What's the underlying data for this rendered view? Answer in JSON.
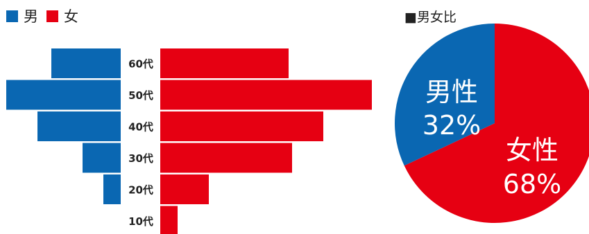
{
  "colors": {
    "male": "#0a67b2",
    "female": "#e60012"
  },
  "legend": {
    "male_label": "男",
    "female_label": "女"
  },
  "chart_data": [
    {
      "type": "bar",
      "orientation": "horizontal-pyramid",
      "categories": [
        "60代",
        "50代",
        "40代",
        "30代",
        "20代",
        "10代"
      ],
      "series": [
        {
          "name": "男",
          "values": [
            10,
            16.5,
            12,
            5.5,
            2.5,
            0
          ]
        },
        {
          "name": "女",
          "values": [
            18.5,
            30.5,
            23.5,
            19,
            7,
            2.5
          ]
        }
      ],
      "xlim": [
        0,
        32
      ]
    },
    {
      "type": "pie",
      "title": "■男女比",
      "slices": [
        {
          "name": "男性",
          "label": "32%",
          "value": 32
        },
        {
          "name": "女性",
          "label": "68%",
          "value": 68
        }
      ]
    }
  ]
}
